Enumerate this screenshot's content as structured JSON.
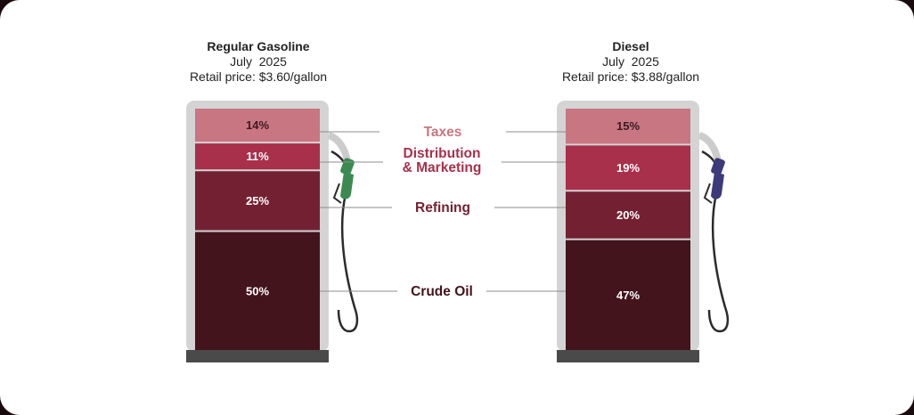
{
  "colors": {
    "taxes": "#c87682",
    "distribution": "#a8304a",
    "refining": "#742033",
    "crude": "#43141c",
    "pump_body": "#d4d4d4",
    "pump_base": "#4a4a4a",
    "gasoline_nozzle": "#3c8a52",
    "diesel_nozzle": "#3c3a7a"
  },
  "chart_data": {
    "type": "bar",
    "stacked": true,
    "stack_order": [
      "Crude Oil",
      "Refining",
      "Distribution & Marketing",
      "Taxes"
    ],
    "categories": [
      "Regular Gasoline",
      "Diesel"
    ],
    "series": [
      {
        "name": "Taxes",
        "values": [
          14,
          15
        ],
        "labels": [
          "14%",
          "15%"
        ]
      },
      {
        "name": "Distribution & Marketing",
        "values": [
          11,
          19
        ],
        "labels": [
          "11%",
          "19%"
        ]
      },
      {
        "name": "Refining",
        "values": [
          25,
          20
        ],
        "labels": [
          "25%",
          "20%"
        ]
      },
      {
        "name": "Crude Oil",
        "values": [
          50,
          47
        ],
        "labels": [
          "50%",
          "47%"
        ]
      }
    ],
    "panels": [
      {
        "fuel": "Regular Gasoline",
        "month": "July",
        "year": "2025",
        "price_line": "Retail price: $3.60/gallon"
      },
      {
        "fuel": "Diesel",
        "month": "July",
        "year": "2025",
        "price_line": "Retail price: $3.88/gallon"
      }
    ],
    "legend_labels": {
      "taxes": "Taxes",
      "distribution_line1": "Distribution",
      "distribution_line2": "& Marketing",
      "refining": "Refining",
      "crude": "Crude Oil"
    }
  }
}
